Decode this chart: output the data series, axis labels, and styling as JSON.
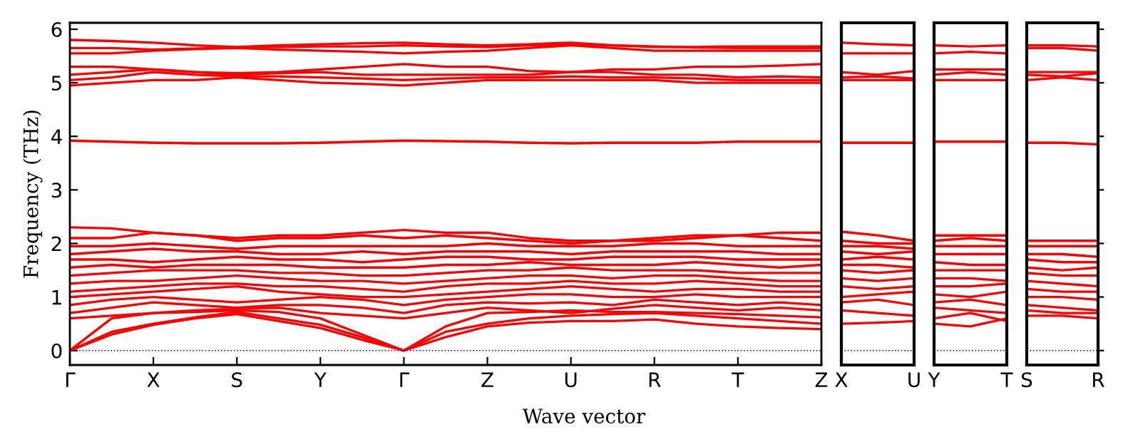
{
  "chart_data": [
    {
      "type": "line",
      "ylabel": "Frequency (THz)",
      "xlabel": "Wave vector",
      "categories": [
        "Γ",
        null,
        "X",
        null,
        "S",
        null,
        "Y",
        null,
        "Γ",
        null,
        "Z",
        null,
        "U",
        null,
        "R",
        null,
        "T",
        null,
        "Z"
      ],
      "ylim": [
        -0.27,
        6.12
      ],
      "yticks": [
        0,
        1,
        2,
        3,
        4,
        5,
        6
      ],
      "grid": false,
      "legend": false,
      "line_style": "solid",
      "marker": "none",
      "ref_lines": [
        {
          "axis": "y",
          "value": 0,
          "color": "#0000ff",
          "line_style": "dotted"
        }
      ],
      "series": [
        {
          "color": "#ff0000",
          "values": [
            0,
            0.3,
            0.48,
            0.6,
            0.68,
            0.55,
            0.42,
            0.2,
            0,
            0.25,
            0.45,
            0.52,
            0.55,
            0.55,
            0.58,
            0.5,
            0.45,
            0.42,
            0.4
          ]
        },
        {
          "color": "#ff0000",
          "values": [
            0,
            0.35,
            0.5,
            0.62,
            0.72,
            0.6,
            0.48,
            0.25,
            0,
            0.35,
            0.5,
            0.6,
            0.65,
            0.68,
            0.7,
            0.65,
            0.6,
            0.55,
            0.5
          ]
        },
        {
          "color": "#ff0000",
          "values": [
            0,
            0.6,
            0.7,
            0.72,
            0.75,
            0.72,
            0.6,
            0.3,
            0,
            0.45,
            0.7,
            0.72,
            0.75,
            0.72,
            0.72,
            0.7,
            0.68,
            0.65,
            0.62
          ]
        },
        {
          "color": "#ff0000",
          "values": [
            0.6,
            0.65,
            0.7,
            0.75,
            0.78,
            0.8,
            0.7,
            0.65,
            0.6,
            0.7,
            0.8,
            0.75,
            0.7,
            0.78,
            0.85,
            0.8,
            0.75,
            0.8,
            0.75
          ]
        },
        {
          "color": "#ff0000",
          "values": [
            0.7,
            0.8,
            0.9,
            0.85,
            0.8,
            0.85,
            0.85,
            0.8,
            0.7,
            0.85,
            0.9,
            0.88,
            0.9,
            0.85,
            0.95,
            0.9,
            0.85,
            0.9,
            0.85
          ]
        },
        {
          "color": "#ff0000",
          "values": [
            0.85,
            0.95,
            1.0,
            0.95,
            0.9,
            0.95,
            1.0,
            0.95,
            0.85,
            0.95,
            1.0,
            1.05,
            1.05,
            1.0,
            1.0,
            1.05,
            1.0,
            1.0,
            1.0
          ]
        },
        {
          "color": "#ff0000",
          "values": [
            1.0,
            1.05,
            1.1,
            1.15,
            1.2,
            1.1,
            1.05,
            1.0,
            1.0,
            1.05,
            1.1,
            1.15,
            1.2,
            1.15,
            1.1,
            1.15,
            1.15,
            1.1,
            1.1
          ]
        },
        {
          "color": "#ff0000",
          "values": [
            1.1,
            1.15,
            1.2,
            1.25,
            1.25,
            1.2,
            1.2,
            1.15,
            1.1,
            1.2,
            1.25,
            1.25,
            1.3,
            1.25,
            1.25,
            1.3,
            1.25,
            1.2,
            1.2
          ]
        },
        {
          "color": "#ff0000",
          "values": [
            1.25,
            1.3,
            1.3,
            1.35,
            1.4,
            1.35,
            1.3,
            1.3,
            1.25,
            1.3,
            1.35,
            1.4,
            1.4,
            1.35,
            1.4,
            1.4,
            1.35,
            1.3,
            1.3
          ]
        },
        {
          "color": "#ff0000",
          "values": [
            1.4,
            1.45,
            1.5,
            1.5,
            1.5,
            1.45,
            1.45,
            1.4,
            1.4,
            1.45,
            1.5,
            1.5,
            1.55,
            1.5,
            1.5,
            1.5,
            1.45,
            1.45,
            1.45
          ]
        },
        {
          "color": "#ff0000",
          "values": [
            1.55,
            1.6,
            1.55,
            1.6,
            1.6,
            1.6,
            1.55,
            1.55,
            1.55,
            1.6,
            1.6,
            1.65,
            1.6,
            1.6,
            1.6,
            1.65,
            1.6,
            1.55,
            1.6
          ]
        },
        {
          "color": "#ff0000",
          "values": [
            1.7,
            1.7,
            1.65,
            1.7,
            1.75,
            1.7,
            1.7,
            1.65,
            1.7,
            1.75,
            1.75,
            1.7,
            1.7,
            1.75,
            1.75,
            1.75,
            1.7,
            1.7,
            1.7
          ]
        },
        {
          "color": "#ff0000",
          "values": [
            1.8,
            1.85,
            1.9,
            1.85,
            1.85,
            1.8,
            1.8,
            1.85,
            1.8,
            1.85,
            1.85,
            1.85,
            1.8,
            1.85,
            1.85,
            1.85,
            1.85,
            1.8,
            1.8
          ]
        },
        {
          "color": "#ff0000",
          "values": [
            1.95,
            1.95,
            2.0,
            1.95,
            1.9,
            1.95,
            1.95,
            1.95,
            1.95,
            1.95,
            2.0,
            1.95,
            1.95,
            1.95,
            2.0,
            2.0,
            1.95,
            1.95,
            1.95
          ]
        },
        {
          "color": "#ff0000",
          "values": [
            2.1,
            2.1,
            2.2,
            2.15,
            2.05,
            2.1,
            2.1,
            2.15,
            2.1,
            2.15,
            2.1,
            2.05,
            2.0,
            2.05,
            2.05,
            2.1,
            2.15,
            2.1,
            2.05
          ]
        },
        {
          "color": "#ff0000",
          "values": [
            2.3,
            2.28,
            2.2,
            2.15,
            2.1,
            2.15,
            2.15,
            2.2,
            2.25,
            2.2,
            2.2,
            2.1,
            2.05,
            2.05,
            2.1,
            2.15,
            2.15,
            2.2,
            2.2
          ]
        },
        {
          "color": "#ff0000",
          "values": [
            3.92,
            3.9,
            3.88,
            3.87,
            3.87,
            3.87,
            3.88,
            3.9,
            3.92,
            3.91,
            3.9,
            3.88,
            3.87,
            3.88,
            3.88,
            3.88,
            3.9,
            3.9,
            3.9
          ]
        },
        {
          "color": "#ff0000",
          "values": [
            4.95,
            5.0,
            5.05,
            5.05,
            5.1,
            5.05,
            5.0,
            4.98,
            4.95,
            5.0,
            5.05,
            5.05,
            5.05,
            5.05,
            5.05,
            5.0,
            5.0,
            5.0,
            5.0
          ]
        },
        {
          "color": "#ff0000",
          "values": [
            5.05,
            5.1,
            5.2,
            5.15,
            5.12,
            5.12,
            5.1,
            5.08,
            5.05,
            5.08,
            5.1,
            5.1,
            5.12,
            5.1,
            5.1,
            5.08,
            5.05,
            5.05,
            5.05
          ]
        },
        {
          "color": "#ff0000",
          "values": [
            5.15,
            5.2,
            5.25,
            5.2,
            5.15,
            5.18,
            5.2,
            5.15,
            5.15,
            5.15,
            5.15,
            5.15,
            5.2,
            5.2,
            5.15,
            5.15,
            5.1,
            5.12,
            5.1
          ]
        },
        {
          "color": "#ff0000",
          "values": [
            5.3,
            5.3,
            5.25,
            5.2,
            5.18,
            5.2,
            5.25,
            5.3,
            5.35,
            5.3,
            5.3,
            5.22,
            5.2,
            5.25,
            5.25,
            5.3,
            5.3,
            5.32,
            5.35
          ]
        },
        {
          "color": "#ff0000",
          "values": [
            5.55,
            5.55,
            5.6,
            5.63,
            5.65,
            5.62,
            5.6,
            5.58,
            5.55,
            5.58,
            5.6,
            5.65,
            5.7,
            5.65,
            5.6,
            5.6,
            5.6,
            5.6,
            5.6
          ]
        },
        {
          "color": "#ff0000",
          "values": [
            5.65,
            5.65,
            5.62,
            5.64,
            5.66,
            5.67,
            5.68,
            5.68,
            5.7,
            5.68,
            5.67,
            5.7,
            5.72,
            5.7,
            5.68,
            5.66,
            5.65,
            5.65,
            5.65
          ]
        },
        {
          "color": "#ff0000",
          "values": [
            5.8,
            5.78,
            5.75,
            5.7,
            5.67,
            5.7,
            5.72,
            5.74,
            5.75,
            5.72,
            5.7,
            5.72,
            5.75,
            5.7,
            5.67,
            5.67,
            5.68,
            5.68,
            5.68
          ]
        }
      ]
    },
    {
      "type": "line",
      "categories": [
        "X",
        null,
        "U"
      ],
      "ylim": [
        -0.27,
        6.12
      ],
      "tick_labels": "x",
      "grid": false,
      "legend": false,
      "line_style": "solid",
      "marker": "none",
      "ref_lines": [
        {
          "axis": "y",
          "value": 0,
          "color": "#0000ff",
          "line_style": "dotted"
        }
      ],
      "series": [
        {
          "color": "#ff0000",
          "values": [
            0.5,
            0.52,
            0.55
          ]
        },
        {
          "color": "#ff0000",
          "values": [
            0.75,
            0.7,
            0.65
          ]
        },
        {
          "color": "#ff0000",
          "values": [
            0.9,
            0.95,
            0.85
          ]
        },
        {
          "color": "#ff0000",
          "values": [
            1.0,
            1.05,
            1.1
          ]
        },
        {
          "color": "#ff0000",
          "values": [
            1.2,
            1.15,
            1.2
          ]
        },
        {
          "color": "#ff0000",
          "values": [
            1.35,
            1.3,
            1.35
          ]
        },
        {
          "color": "#ff0000",
          "values": [
            1.5,
            1.45,
            1.5
          ]
        },
        {
          "color": "#ff0000",
          "values": [
            1.6,
            1.6,
            1.55
          ]
        },
        {
          "color": "#ff0000",
          "values": [
            1.7,
            1.75,
            1.7
          ]
        },
        {
          "color": "#ff0000",
          "values": [
            1.85,
            1.8,
            1.85
          ]
        },
        {
          "color": "#ff0000",
          "values": [
            1.95,
            1.95,
            1.9
          ]
        },
        {
          "color": "#ff0000",
          "values": [
            2.05,
            2.0,
            2.0
          ]
        },
        {
          "color": "#ff0000",
          "values": [
            2.22,
            2.15,
            2.05
          ]
        },
        {
          "color": "#ff0000",
          "values": [
            3.88,
            3.88,
            3.88
          ]
        },
        {
          "color": "#ff0000",
          "values": [
            5.05,
            5.05,
            5.05
          ]
        },
        {
          "color": "#ff0000",
          "values": [
            5.1,
            5.12,
            5.08
          ]
        },
        {
          "color": "#ff0000",
          "values": [
            5.2,
            5.15,
            5.22
          ]
        },
        {
          "color": "#ff0000",
          "values": [
            5.55,
            5.55,
            5.55
          ]
        },
        {
          "color": "#ff0000",
          "values": [
            5.75,
            5.72,
            5.7
          ]
        }
      ]
    },
    {
      "type": "line",
      "categories": [
        "Y",
        null,
        "T"
      ],
      "ylim": [
        -0.27,
        6.12
      ],
      "tick_labels": "x",
      "grid": false,
      "legend": false,
      "line_style": "solid",
      "marker": "none",
      "ref_lines": [
        {
          "axis": "y",
          "value": 0,
          "color": "#0000ff",
          "line_style": "dotted"
        }
      ],
      "series": [
        {
          "color": "#ff0000",
          "values": [
            0.5,
            0.45,
            0.6
          ]
        },
        {
          "color": "#ff0000",
          "values": [
            0.6,
            0.7,
            0.55
          ]
        },
        {
          "color": "#ff0000",
          "values": [
            0.8,
            0.75,
            0.7
          ]
        },
        {
          "color": "#ff0000",
          "values": [
            0.9,
            0.95,
            0.85
          ]
        },
        {
          "color": "#ff0000",
          "values": [
            1.05,
            1.0,
            1.1
          ]
        },
        {
          "color": "#ff0000",
          "values": [
            1.2,
            1.2,
            1.25
          ]
        },
        {
          "color": "#ff0000",
          "values": [
            1.35,
            1.35,
            1.3
          ]
        },
        {
          "color": "#ff0000",
          "values": [
            1.5,
            1.5,
            1.5
          ]
        },
        {
          "color": "#ff0000",
          "values": [
            1.65,
            1.6,
            1.6
          ]
        },
        {
          "color": "#ff0000",
          "values": [
            1.8,
            1.8,
            1.8
          ]
        },
        {
          "color": "#ff0000",
          "values": [
            1.95,
            1.95,
            1.95
          ]
        },
        {
          "color": "#ff0000",
          "values": [
            2.05,
            2.1,
            2.05
          ]
        },
        {
          "color": "#ff0000",
          "values": [
            2.15,
            2.15,
            2.15
          ]
        },
        {
          "color": "#ff0000",
          "values": [
            3.9,
            3.9,
            3.9
          ]
        },
        {
          "color": "#ff0000",
          "values": [
            5.05,
            5.05,
            5.05
          ]
        },
        {
          "color": "#ff0000",
          "values": [
            5.15,
            5.2,
            5.15
          ]
        },
        {
          "color": "#ff0000",
          "values": [
            5.25,
            5.25,
            5.25
          ]
        },
        {
          "color": "#ff0000",
          "values": [
            5.55,
            5.58,
            5.55
          ]
        },
        {
          "color": "#ff0000",
          "values": [
            5.7,
            5.68,
            5.7
          ]
        }
      ]
    },
    {
      "type": "line",
      "categories": [
        "S",
        null,
        "R"
      ],
      "ylim": [
        -0.27,
        6.12
      ],
      "yticks": [
        {
          "value": 0,
          "label": null
        },
        {
          "value": 1,
          "label": null
        },
        {
          "value": 2,
          "label": null
        },
        {
          "value": 3,
          "label": null
        },
        {
          "value": 4,
          "label": null
        },
        {
          "value": 5,
          "label": null
        },
        {
          "value": 6,
          "label": null
        }
      ],
      "tick_labels": "x",
      "grid": false,
      "legend": false,
      "line_style": "solid",
      "marker": "none",
      "ref_lines": [
        {
          "axis": "y",
          "value": 0,
          "color": "#0000ff",
          "line_style": "dotted"
        }
      ],
      "series": [
        {
          "color": "#ff0000",
          "values": [
            0.65,
            0.65,
            0.6
          ]
        },
        {
          "color": "#ff0000",
          "values": [
            0.75,
            0.7,
            0.7
          ]
        },
        {
          "color": "#ff0000",
          "values": [
            0.85,
            0.8,
            0.75
          ]
        },
        {
          "color": "#ff0000",
          "values": [
            1.0,
            1.0,
            0.95
          ]
        },
        {
          "color": "#ff0000",
          "values": [
            1.15,
            1.1,
            1.1
          ]
        },
        {
          "color": "#ff0000",
          "values": [
            1.3,
            1.25,
            1.2
          ]
        },
        {
          "color": "#ff0000",
          "values": [
            1.45,
            1.4,
            1.4
          ]
        },
        {
          "color": "#ff0000",
          "values": [
            1.55,
            1.5,
            1.55
          ]
        },
        {
          "color": "#ff0000",
          "values": [
            1.7,
            1.65,
            1.65
          ]
        },
        {
          "color": "#ff0000",
          "values": [
            1.8,
            1.8,
            1.75
          ]
        },
        {
          "color": "#ff0000",
          "values": [
            1.95,
            1.95,
            1.95
          ]
        },
        {
          "color": "#ff0000",
          "values": [
            2.05,
            2.05,
            2.05
          ]
        },
        {
          "color": "#ff0000",
          "values": [
            3.88,
            3.88,
            3.85
          ]
        },
        {
          "color": "#ff0000",
          "values": [
            5.05,
            5.1,
            5.05
          ]
        },
        {
          "color": "#ff0000",
          "values": [
            5.15,
            5.12,
            5.18
          ]
        },
        {
          "color": "#ff0000",
          "values": [
            5.2,
            5.2,
            5.2
          ]
        },
        {
          "color": "#ff0000",
          "values": [
            5.65,
            5.65,
            5.6
          ]
        },
        {
          "color": "#ff0000",
          "values": [
            5.7,
            5.7,
            5.68
          ]
        }
      ]
    }
  ]
}
